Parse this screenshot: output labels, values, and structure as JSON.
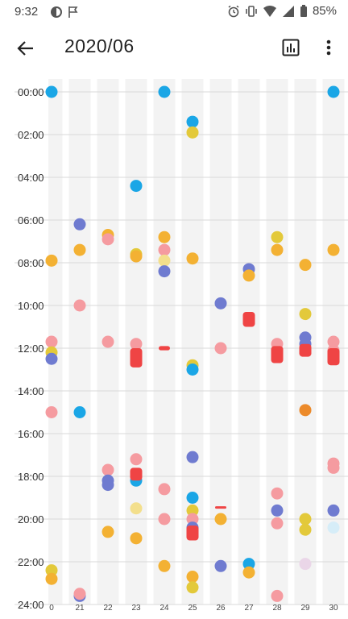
{
  "status_bar": {
    "time": "9:32",
    "battery": "85%",
    "left_icons": [
      "circle-badge-icon",
      "flag-icon"
    ],
    "right_icons": [
      "alarm-icon",
      "vibrate-icon",
      "wifi-icon",
      "signal-icon",
      "battery-icon"
    ]
  },
  "app_bar": {
    "title": "2020/06",
    "back_icon": "arrow-left-icon",
    "stats_icon": "bar-chart-icon",
    "menu_icon": "more-vert-icon"
  },
  "chart_data": {
    "type": "scatter",
    "x_categories": [
      "0",
      "21",
      "22",
      "23",
      "24",
      "25",
      "26",
      "27",
      "28",
      "29",
      "30"
    ],
    "y_labels": [
      "00:00",
      "02:00",
      "04:00",
      "06:00",
      "08:00",
      "10:00",
      "12:00",
      "14:00",
      "16:00",
      "18:00",
      "20:00",
      "22:00",
      "24:00"
    ],
    "ylim": [
      0,
      24
    ],
    "grid": true,
    "colors": {
      "blue": "#1aa6e6",
      "indigo": "#6f7bd0",
      "orange": "#f3b133",
      "pink": "#f59ba0",
      "red": "#ef4444",
      "yellow": "#e3c93a",
      "dark_orange": "#ec8a2a",
      "pale_yellow": "#f3df8c",
      "lavender": "#ead6e8",
      "pale_blue": "#d6edf8",
      "column_band": "#f3f3f3"
    },
    "points": [
      {
        "x": "0",
        "y": 0.0,
        "c": "blue"
      },
      {
        "x": "0",
        "y": 7.9,
        "c": "orange"
      },
      {
        "x": "0",
        "y": 11.7,
        "c": "pink"
      },
      {
        "x": "0",
        "y": 12.2,
        "c": "yellow"
      },
      {
        "x": "0",
        "y": 12.5,
        "c": "indigo"
      },
      {
        "x": "0",
        "y": 15.0,
        "c": "pink"
      },
      {
        "x": "0",
        "y": 22.4,
        "c": "yellow"
      },
      {
        "x": "0",
        "y": 22.8,
        "c": "orange"
      },
      {
        "x": "21",
        "y": 6.2,
        "c": "indigo"
      },
      {
        "x": "21",
        "y": 7.4,
        "c": "orange"
      },
      {
        "x": "21",
        "y": 10.0,
        "c": "pink"
      },
      {
        "x": "21",
        "y": 15.0,
        "c": "blue"
      },
      {
        "x": "21",
        "y": 23.6,
        "c": "indigo"
      },
      {
        "x": "21",
        "y": 23.5,
        "c": "pink"
      },
      {
        "x": "22",
        "y": 6.7,
        "c": "orange"
      },
      {
        "x": "22",
        "y": 6.9,
        "c": "pink"
      },
      {
        "x": "22",
        "y": 11.7,
        "c": "pink"
      },
      {
        "x": "22",
        "y": 17.7,
        "c": "pink"
      },
      {
        "x": "22",
        "y": 18.2,
        "c": "indigo"
      },
      {
        "x": "22",
        "y": 18.4,
        "c": "indigo"
      },
      {
        "x": "22",
        "y": 20.6,
        "c": "orange"
      },
      {
        "x": "23",
        "y": 4.4,
        "c": "blue"
      },
      {
        "x": "23",
        "y": 7.6,
        "c": "yellow"
      },
      {
        "x": "23",
        "y": 7.7,
        "c": "orange"
      },
      {
        "x": "23",
        "y": 11.8,
        "c": "pink"
      },
      {
        "x": "23",
        "y": 12.4,
        "c": "pink"
      },
      {
        "x": "23",
        "y": 17.2,
        "c": "pink"
      },
      {
        "x": "23",
        "y": 18.2,
        "c": "blue"
      },
      {
        "x": "23",
        "y": 19.5,
        "c": "pale_yellow"
      },
      {
        "x": "23",
        "y": 20.9,
        "c": "orange"
      },
      {
        "x": "24",
        "y": 0.0,
        "c": "blue"
      },
      {
        "x": "24",
        "y": 6.8,
        "c": "orange"
      },
      {
        "x": "24",
        "y": 7.4,
        "c": "pink"
      },
      {
        "x": "24",
        "y": 7.9,
        "c": "pale_yellow"
      },
      {
        "x": "24",
        "y": 8.4,
        "c": "indigo"
      },
      {
        "x": "24",
        "y": 18.6,
        "c": "pink"
      },
      {
        "x": "24",
        "y": 20.0,
        "c": "pink"
      },
      {
        "x": "24",
        "y": 22.2,
        "c": "orange"
      },
      {
        "x": "25",
        "y": 1.4,
        "c": "blue"
      },
      {
        "x": "25",
        "y": 1.9,
        "c": "yellow"
      },
      {
        "x": "25",
        "y": 7.8,
        "c": "orange"
      },
      {
        "x": "25",
        "y": 12.8,
        "c": "yellow"
      },
      {
        "x": "25",
        "y": 13.0,
        "c": "blue"
      },
      {
        "x": "25",
        "y": 17.1,
        "c": "indigo"
      },
      {
        "x": "25",
        "y": 19.0,
        "c": "blue"
      },
      {
        "x": "25",
        "y": 19.6,
        "c": "yellow"
      },
      {
        "x": "25",
        "y": 20.0,
        "c": "pink"
      },
      {
        "x": "25",
        "y": 20.4,
        "c": "indigo"
      },
      {
        "x": "25",
        "y": 22.7,
        "c": "orange"
      },
      {
        "x": "25",
        "y": 23.2,
        "c": "yellow"
      },
      {
        "x": "26",
        "y": 9.9,
        "c": "indigo"
      },
      {
        "x": "26",
        "y": 12.0,
        "c": "pink"
      },
      {
        "x": "26",
        "y": 20.0,
        "c": "orange"
      },
      {
        "x": "26",
        "y": 22.2,
        "c": "indigo"
      },
      {
        "x": "27",
        "y": 8.3,
        "c": "indigo"
      },
      {
        "x": "27",
        "y": 8.6,
        "c": "orange"
      },
      {
        "x": "27",
        "y": 22.1,
        "c": "blue"
      },
      {
        "x": "27",
        "y": 22.5,
        "c": "orange"
      },
      {
        "x": "28",
        "y": 6.8,
        "c": "yellow"
      },
      {
        "x": "28",
        "y": 7.4,
        "c": "orange"
      },
      {
        "x": "28",
        "y": 11.8,
        "c": "pink"
      },
      {
        "x": "28",
        "y": 18.8,
        "c": "pink"
      },
      {
        "x": "28",
        "y": 19.6,
        "c": "indigo"
      },
      {
        "x": "28",
        "y": 20.2,
        "c": "pink"
      },
      {
        "x": "28",
        "y": 23.6,
        "c": "pink"
      },
      {
        "x": "29",
        "y": 8.1,
        "c": "orange"
      },
      {
        "x": "29",
        "y": 10.4,
        "c": "yellow"
      },
      {
        "x": "29",
        "y": 11.5,
        "c": "indigo"
      },
      {
        "x": "29",
        "y": 11.8,
        "c": "indigo"
      },
      {
        "x": "29",
        "y": 12.1,
        "c": "pink"
      },
      {
        "x": "29",
        "y": 14.9,
        "c": "dark_orange"
      },
      {
        "x": "29",
        "y": 20.0,
        "c": "yellow"
      },
      {
        "x": "29",
        "y": 20.5,
        "c": "yellow"
      },
      {
        "x": "29",
        "y": 22.1,
        "c": "lavender"
      },
      {
        "x": "30",
        "y": 0.0,
        "c": "blue"
      },
      {
        "x": "30",
        "y": 7.4,
        "c": "orange"
      },
      {
        "x": "30",
        "y": 11.7,
        "c": "pink"
      },
      {
        "x": "30",
        "y": 12.1,
        "c": "pink"
      },
      {
        "x": "30",
        "y": 17.4,
        "c": "pink"
      },
      {
        "x": "30",
        "y": 17.6,
        "c": "pink"
      },
      {
        "x": "30",
        "y": 19.6,
        "c": "indigo"
      },
      {
        "x": "30",
        "y": 20.4,
        "c": "pale_blue"
      }
    ],
    "bars": [
      {
        "x": "23",
        "y0": 12.0,
        "y1": 12.9,
        "c": "red"
      },
      {
        "x": "23",
        "y0": 17.6,
        "y1": 18.2,
        "c": "red"
      },
      {
        "x": "24",
        "y0": 11.9,
        "y1": 12.1,
        "c": "red"
      },
      {
        "x": "25",
        "y0": 20.3,
        "y1": 21.0,
        "c": "red"
      },
      {
        "x": "26",
        "y0": 19.4,
        "y1": 19.5,
        "c": "red"
      },
      {
        "x": "27",
        "y0": 10.3,
        "y1": 11.0,
        "c": "red"
      },
      {
        "x": "28",
        "y0": 11.9,
        "y1": 12.7,
        "c": "red"
      },
      {
        "x": "29",
        "y0": 11.8,
        "y1": 12.4,
        "c": "red"
      },
      {
        "x": "30",
        "y0": 12.0,
        "y1": 12.8,
        "c": "red"
      }
    ]
  }
}
